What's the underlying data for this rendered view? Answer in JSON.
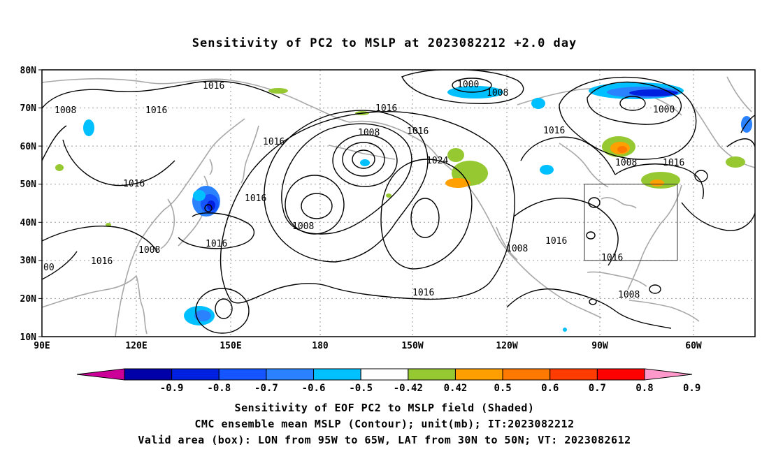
{
  "title": "Sensitivity of PC2 to MSLP at 2023082212 +2.0 day",
  "axes": {
    "lat_labels": [
      "80N",
      "70N",
      "60N",
      "50N",
      "40N",
      "30N",
      "20N",
      "10N"
    ],
    "lon_labels": [
      "90E",
      "120E",
      "150E",
      "180",
      "150W",
      "120W",
      "90W",
      "60W"
    ]
  },
  "contour_labels": [
    "1016",
    "1008",
    "1016",
    "1016",
    "1016",
    "1016",
    "1008",
    "1016",
    "1008",
    "1016",
    "1000",
    "1008",
    "1016",
    "1008",
    "1024",
    "1016",
    "1000",
    "1016",
    "1008",
    "1016",
    "1008",
    "1016",
    "1008",
    "1016",
    "1016",
    "00",
    "1008"
  ],
  "valid_box": {
    "lon_min": -95,
    "lon_max": -65,
    "lat_min": 30,
    "lat_max": 50
  },
  "colorbar": {
    "labels": [
      "-0.9",
      "-0.8",
      "-0.7",
      "-0.6",
      "-0.5",
      "-0.42",
      "0.42",
      "0.5",
      "0.6",
      "0.7",
      "0.8",
      "0.9"
    ],
    "colors": [
      "#cc0099",
      "#0000a8",
      "#0020e0",
      "#1455ff",
      "#2a82ff",
      "#00c0ff",
      "#ffffff",
      "#96c832",
      "#ffa000",
      "#ff7800",
      "#ff3c00",
      "#ff0000",
      "#ff99cc"
    ]
  },
  "captions": {
    "line1": "Sensitivity of EOF PC2 to MSLP field (Shaded)",
    "line2": "CMC ensemble mean MSLP (Contour); unit(mb); IT:2023082212",
    "line3": "Valid area (box): LON from 95W to 65W, LAT from 30N to 50N; VT: 2023082612"
  }
}
